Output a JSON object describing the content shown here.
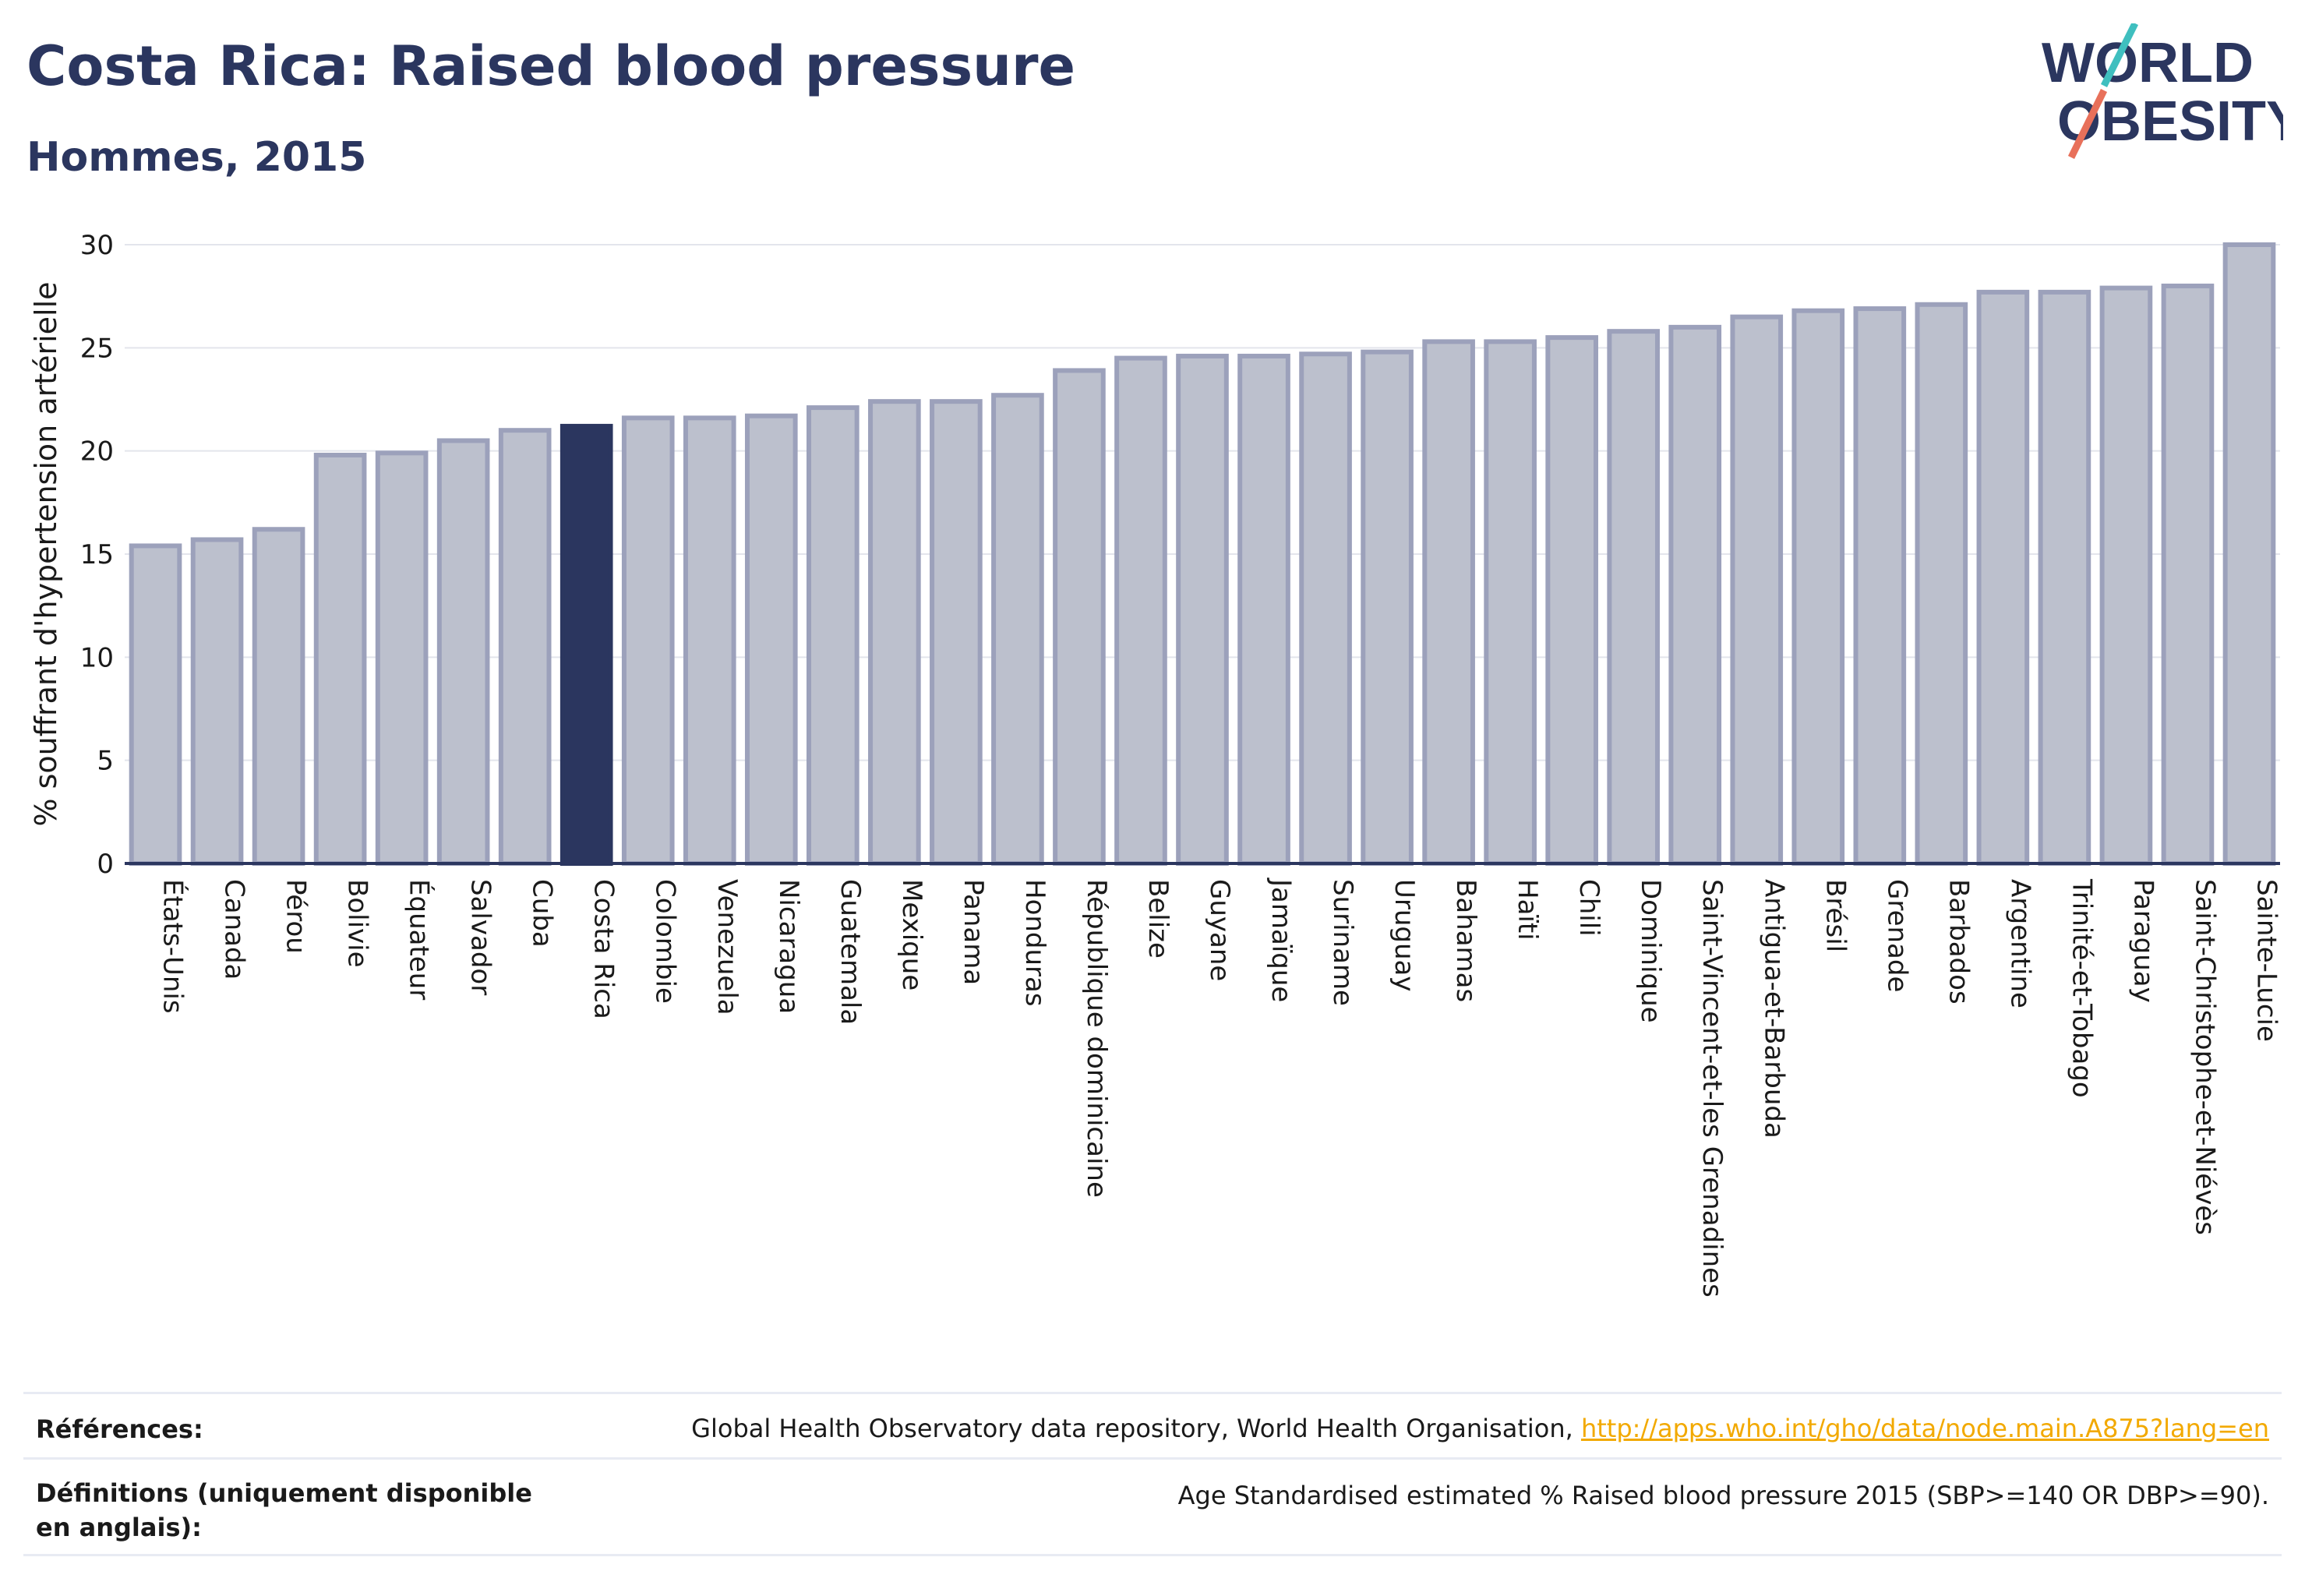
{
  "header": {
    "title": "Costa Rica: Raised blood pressure",
    "subtitle": "Hommes, 2015",
    "logo_line1": "WORLD",
    "logo_line2": "OBESITY"
  },
  "colors": {
    "bar": "#bcc0cd",
    "bar_border": "#9ca1bb",
    "highlight": "#2b365f",
    "text": "#2b365f",
    "link": "#f2a900",
    "logo_slash_top": "#3fbfbf",
    "logo_slash_bottom": "#e8705a"
  },
  "chart_data": {
    "type": "bar",
    "ylabel": "% souffrant d'hypertension artérielle",
    "ylim": [
      0,
      30
    ],
    "yticks": [
      0,
      5,
      10,
      15,
      20,
      25,
      30
    ],
    "grid": true,
    "highlight": "Costa Rica",
    "categories": [
      "États-Unis",
      "Canada",
      "Pérou",
      "Bolivie",
      "Équateur",
      "Salvador",
      "Cuba",
      "Costa Rica",
      "Colombie",
      "Venezuela",
      "Nicaragua",
      "Guatemala",
      "Mexique",
      "Panama",
      "Honduras",
      "République dominicaine",
      "Belize",
      "Guyane",
      "Jamaïque",
      "Suriname",
      "Uruguay",
      "Bahamas",
      "Haïti",
      "Chili",
      "Dominique",
      "Saint-Vincent-et-les Grenadines",
      "Antigua-et-Barbuda",
      "Brésil",
      "Grenade",
      "Barbados",
      "Argentine",
      "Trinité-et-Tobago",
      "Paraguay",
      "Saint-Christophe-et-Niévès",
      "Sainte-Lucie"
    ],
    "values": [
      15.4,
      15.7,
      16.2,
      19.8,
      19.9,
      20.5,
      21.0,
      21.2,
      21.6,
      21.6,
      21.7,
      22.1,
      22.4,
      22.4,
      22.7,
      23.9,
      24.5,
      24.6,
      24.6,
      24.7,
      24.8,
      25.3,
      25.3,
      25.5,
      25.8,
      26.0,
      26.5,
      26.8,
      26.9,
      27.1,
      27.7,
      27.7,
      27.9,
      28.0,
      30.0
    ]
  },
  "footer": {
    "references_label": "Références:",
    "references_text": "Global Health Observatory data repository, World Health Organisation,",
    "references_link": "http://apps.who.int/gho/data/node.main.A875?lang=en",
    "definitions_label": "Définitions (uniquement disponible en anglais):",
    "definitions_text": "Age Standardised estimated % Raised blood pressure 2015 (SBP>=140 OR DBP>=90)."
  }
}
